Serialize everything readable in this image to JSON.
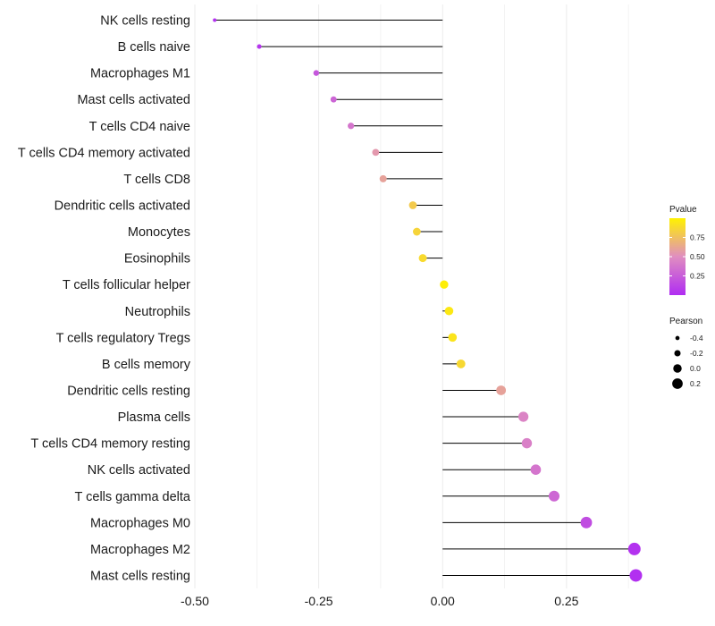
{
  "chart_data": {
    "type": "lollipop",
    "title": "",
    "xlabel": "",
    "ylabel": "",
    "xlim": [
      -0.5,
      0.4
    ],
    "x_ticks": [
      "-0.50",
      "-0.25",
      "0.00",
      "0.25"
    ],
    "x_tick_values": [
      -0.5,
      -0.25,
      0.0,
      0.25
    ],
    "grid": "vertical",
    "color_scale": {
      "low": "#b02cf2",
      "high": "#fff200",
      "domain": [
        0,
        1
      ]
    },
    "points": [
      {
        "label": "NK cells resting",
        "pearson": -0.46,
        "pvalue": 0.02
      },
      {
        "label": "B cells naive",
        "pearson": -0.37,
        "pvalue": 0.05
      },
      {
        "label": "Macrophages M1",
        "pearson": -0.255,
        "pvalue": 0.22
      },
      {
        "label": "Mast cells activated",
        "pearson": -0.22,
        "pvalue": 0.29
      },
      {
        "label": "T cells CD4 naive",
        "pearson": -0.185,
        "pvalue": 0.38
      },
      {
        "label": "T cells CD4 memory activated",
        "pearson": -0.135,
        "pvalue": 0.55
      },
      {
        "label": "T cells CD8",
        "pearson": -0.12,
        "pvalue": 0.6
      },
      {
        "label": "Dendritic cells activated",
        "pearson": -0.06,
        "pvalue": 0.8
      },
      {
        "label": "Monocytes",
        "pearson": -0.052,
        "pvalue": 0.85
      },
      {
        "label": "Eosinophils",
        "pearson": -0.04,
        "pvalue": 0.88
      },
      {
        "label": "T cells follicular helper",
        "pearson": 0.003,
        "pvalue": 0.98
      },
      {
        "label": "Neutrophils",
        "pearson": 0.013,
        "pvalue": 0.95
      },
      {
        "label": "T cells regulatory  Tregs",
        "pearson": 0.02,
        "pvalue": 0.93
      },
      {
        "label": "B cells memory",
        "pearson": 0.037,
        "pvalue": 0.87
      },
      {
        "label": "Dendritic cells resting",
        "pearson": 0.118,
        "pvalue": 0.6
      },
      {
        "label": "Plasma cells",
        "pearson": 0.163,
        "pvalue": 0.45
      },
      {
        "label": "T cells CD4 memory resting",
        "pearson": 0.17,
        "pvalue": 0.43
      },
      {
        "label": "NK cells activated",
        "pearson": 0.188,
        "pvalue": 0.37
      },
      {
        "label": "T cells gamma delta",
        "pearson": 0.225,
        "pvalue": 0.3
      },
      {
        "label": "Macrophages M0",
        "pearson": 0.29,
        "pvalue": 0.17
      },
      {
        "label": "Macrophages M2",
        "pearson": 0.387,
        "pvalue": 0.03
      },
      {
        "label": "Mast cells resting",
        "pearson": 0.39,
        "pvalue": 0.02
      }
    ],
    "legend": {
      "color_title": "Pvalue",
      "color_breaks": [
        0.75,
        0.5,
        0.25
      ],
      "color_labels": [
        "0.75",
        "0.50",
        "0.25"
      ],
      "size_title": "Pearson",
      "size_breaks": [
        -0.4,
        -0.2,
        0.0,
        0.2
      ],
      "size_labels": [
        "-0.4",
        "-0.2",
        "0.0",
        "0.2"
      ]
    }
  }
}
